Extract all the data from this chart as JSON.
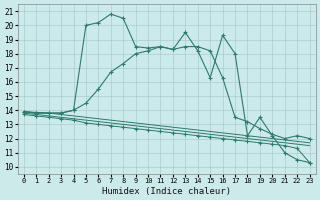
{
  "xlabel": "Humidex (Indice chaleur)",
  "bg_color": "#cceaea",
  "grid_color": "#aacccc",
  "line_color": "#2d7a6a",
  "xlim": [
    -0.5,
    23.5
  ],
  "ylim": [
    9.5,
    21.5
  ],
  "xticks": [
    0,
    1,
    2,
    3,
    4,
    5,
    6,
    7,
    8,
    9,
    10,
    11,
    12,
    13,
    14,
    15,
    16,
    17,
    18,
    19,
    20,
    21,
    22,
    23
  ],
  "yticks": [
    10,
    11,
    12,
    13,
    14,
    15,
    16,
    17,
    18,
    19,
    20,
    21
  ],
  "s1_x": [
    0,
    1,
    2,
    3,
    4,
    5,
    6,
    7,
    8,
    9,
    10,
    11,
    12,
    13,
    14,
    15,
    16,
    17,
    18,
    19,
    20,
    21,
    22,
    23
  ],
  "s1_y": [
    13.9,
    13.8,
    13.8,
    13.8,
    14.0,
    20.0,
    20.2,
    20.8,
    20.5,
    18.5,
    18.4,
    18.5,
    18.3,
    19.5,
    18.2,
    16.3,
    19.3,
    18.0,
    12.2,
    13.5,
    12.2,
    11.0,
    10.5,
    10.3
  ],
  "s2_x": [
    0,
    1,
    2,
    3,
    4,
    5,
    6,
    7,
    8,
    9,
    10,
    11,
    12,
    13,
    14,
    15,
    16,
    17,
    18,
    19,
    20,
    21,
    22,
    23
  ],
  "s2_y": [
    13.9,
    13.8,
    13.8,
    13.8,
    14.0,
    14.5,
    15.5,
    16.7,
    17.3,
    18.0,
    18.2,
    18.5,
    18.3,
    18.5,
    18.5,
    18.2,
    16.3,
    13.5,
    13.2,
    12.7,
    12.3,
    12.0,
    12.2,
    12.0
  ],
  "s3_y": [
    13.9,
    13.85,
    13.8,
    13.7,
    13.6,
    13.5,
    13.4,
    13.3,
    13.2,
    13.1,
    13.0,
    12.9,
    12.8,
    12.7,
    12.6,
    12.5,
    12.4,
    12.3,
    12.2,
    12.1,
    12.0,
    11.9,
    11.8,
    11.7
  ],
  "s4_y": [
    13.8,
    13.7,
    13.6,
    13.5,
    13.4,
    13.3,
    13.2,
    13.1,
    13.0,
    12.9,
    12.8,
    12.7,
    12.6,
    12.5,
    12.4,
    12.3,
    12.2,
    12.1,
    12.0,
    11.9,
    11.8,
    11.7,
    11.6,
    11.5
  ],
  "s5_y": [
    13.7,
    13.6,
    13.5,
    13.4,
    13.3,
    13.1,
    13.0,
    12.9,
    12.8,
    12.7,
    12.6,
    12.5,
    12.4,
    12.3,
    12.2,
    12.1,
    12.0,
    11.9,
    11.8,
    11.7,
    11.6,
    11.5,
    11.3,
    10.3
  ]
}
